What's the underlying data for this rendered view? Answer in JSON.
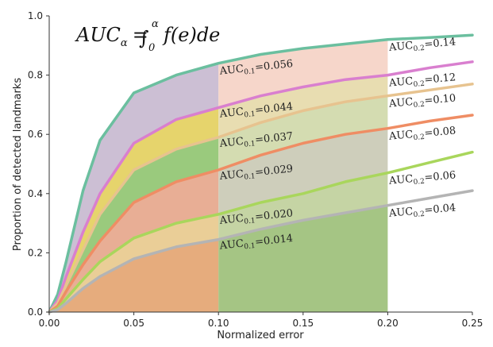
{
  "chart_data": {
    "type": "area",
    "formula": {
      "lhs": "AUC",
      "lhs_sub": "α",
      "eq": "=",
      "int_upper": "α",
      "int_lower": "0",
      "body": "f(e)de"
    },
    "xlabel": "Normalized error",
    "ylabel": "Proportion of detected landmarks",
    "xlim": [
      0,
      0.25
    ],
    "ylim": [
      0,
      1.0
    ],
    "xticks": [
      "0.00",
      "0.05",
      "0.10",
      "0.15",
      "0.20",
      "0.25"
    ],
    "yticks": [
      "0.0",
      "0.2",
      "0.4",
      "0.6",
      "0.8",
      "1.0"
    ],
    "markers": [
      0.1,
      0.2
    ],
    "x": [
      0,
      0.005,
      0.01,
      0.02,
      0.03,
      0.05,
      0.075,
      0.1,
      0.125,
      0.15,
      0.175,
      0.2,
      0.225,
      0.25
    ],
    "series": [
      {
        "color": "#6bbf9f",
        "values": [
          0,
          0.06,
          0.17,
          0.41,
          0.58,
          0.74,
          0.8,
          0.84,
          0.87,
          0.89,
          0.905,
          0.92,
          0.927,
          0.935
        ],
        "auc01_label": "AUC",
        "auc01_sub": "0.1",
        "auc01_value": "=0.056",
        "auc02_label": "AUC",
        "auc02_sub": "0.2",
        "auc02_value": "=0.14"
      },
      {
        "color": "#d97fcf",
        "values": [
          0,
          0.04,
          0.12,
          0.27,
          0.4,
          0.57,
          0.65,
          0.69,
          0.73,
          0.76,
          0.785,
          0.8,
          0.825,
          0.845
        ],
        "auc01_label": "AUC",
        "auc01_sub": "0.1",
        "auc01_value": "=0.044",
        "auc02_label": "AUC",
        "auc02_sub": "0.2",
        "auc02_value": "=0.12"
      },
      {
        "color": "#e7c38f",
        "values": [
          0,
          0.03,
          0.09,
          0.21,
          0.33,
          0.48,
          0.55,
          0.59,
          0.64,
          0.68,
          0.71,
          0.73,
          0.75,
          0.77
        ],
        "auc01_label": "AUC",
        "auc01_sub": "0.1",
        "auc01_value": "=0.037",
        "auc02_label": "AUC",
        "auc02_sub": "0.2",
        "auc02_value": "=0.10"
      },
      {
        "color": "#ef8d64",
        "values": [
          0,
          0.02,
          0.07,
          0.16,
          0.24,
          0.37,
          0.44,
          0.48,
          0.53,
          0.57,
          0.6,
          0.62,
          0.645,
          0.665
        ],
        "auc01_label": "AUC",
        "auc01_sub": "0.1",
        "auc01_value": "=0.029",
        "auc02_label": "AUC",
        "auc02_sub": "0.2",
        "auc02_value": "=0.08"
      },
      {
        "color": "#a9d65c",
        "values": [
          0,
          0.012,
          0.045,
          0.11,
          0.17,
          0.25,
          0.3,
          0.33,
          0.37,
          0.4,
          0.44,
          0.47,
          0.505,
          0.54
        ],
        "auc01_label": "AUC",
        "auc01_sub": "0.1",
        "auc01_value": "=0.020",
        "auc02_label": "AUC",
        "auc02_sub": "0.2",
        "auc02_value": "=0.06"
      },
      {
        "color": "#b4b4b4",
        "values": [
          0,
          0.008,
          0.03,
          0.08,
          0.12,
          0.18,
          0.22,
          0.245,
          0.28,
          0.31,
          0.335,
          0.36,
          0.385,
          0.41
        ],
        "auc01_label": "AUC",
        "auc01_sub": "0.1",
        "auc01_value": "=0.014",
        "auc02_label": "AUC",
        "auc02_sub": "0.2",
        "auc02_value": "=0.04"
      }
    ],
    "band_colors": [
      "#c7b8cf",
      "#e3cf5c",
      "#8fc46f",
      "#e6a58a",
      "#e8c98c",
      "#e3a36f"
    ],
    "band_colors_02": [
      "#f5d2c4",
      "#e6d9a8",
      "#cfd8a8",
      "#c9c9b4",
      "#bfcf9a",
      "#9bbf77"
    ],
    "grid": false
  }
}
